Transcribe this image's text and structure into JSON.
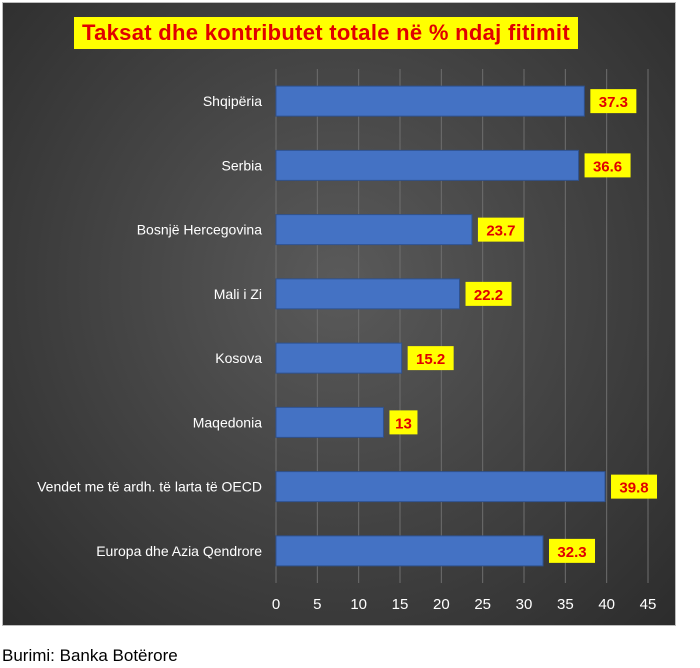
{
  "chart_data": {
    "type": "bar",
    "orientation": "horizontal",
    "title": "Taksat dhe kontributet totale në % ndaj fitimit",
    "categories": [
      "Shqipëria",
      "Serbia",
      "Bosnjë Hercegovina",
      "Mali i Zi",
      "Kosova",
      "Maqedonia",
      "Vendet me të ardh. të larta të OECD",
      "Europa dhe Azia Qendrore"
    ],
    "values": [
      37.3,
      36.6,
      23.7,
      22.2,
      15.2,
      13,
      39.8,
      32.3
    ],
    "data_labels": [
      "37.3",
      "36.6",
      "23.7",
      "22.2",
      "15.2",
      "13",
      "39.8",
      "32.3"
    ],
    "xlim": [
      0,
      45
    ],
    "x_ticks": [
      0,
      5,
      10,
      15,
      20,
      25,
      30,
      35,
      40,
      45
    ],
    "xlabel": "",
    "ylabel": "",
    "grid": "vertical",
    "legend": "none"
  },
  "source_note": "Burimi: Banka Botërore",
  "colors": {
    "bar": "#4472c4",
    "label_box": "#ffff00",
    "label_text": "#e00000",
    "title_box": "#ffff00",
    "title_text": "#e00000",
    "axis_text": "#ffffff",
    "gridline": "#6e6e6e"
  }
}
